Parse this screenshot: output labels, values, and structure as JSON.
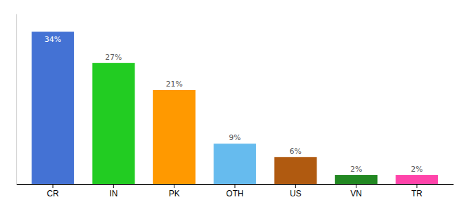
{
  "chart_data": {
    "type": "bar",
    "categories": [
      "CR",
      "IN",
      "PK",
      "OTH",
      "US",
      "VN",
      "TR"
    ],
    "values": [
      34,
      27,
      21,
      9,
      6,
      2,
      2
    ],
    "value_labels": [
      "34%",
      "27%",
      "21%",
      "9%",
      "6%",
      "2%",
      "2%"
    ],
    "colors": [
      "#4472d4",
      "#22cc22",
      "#ff9900",
      "#66bbee",
      "#b05a10",
      "#228822",
      "#ff44aa"
    ],
    "data_labels": true,
    "ylim": [
      0,
      38
    ],
    "tick_labels": "x",
    "grid": false
  }
}
